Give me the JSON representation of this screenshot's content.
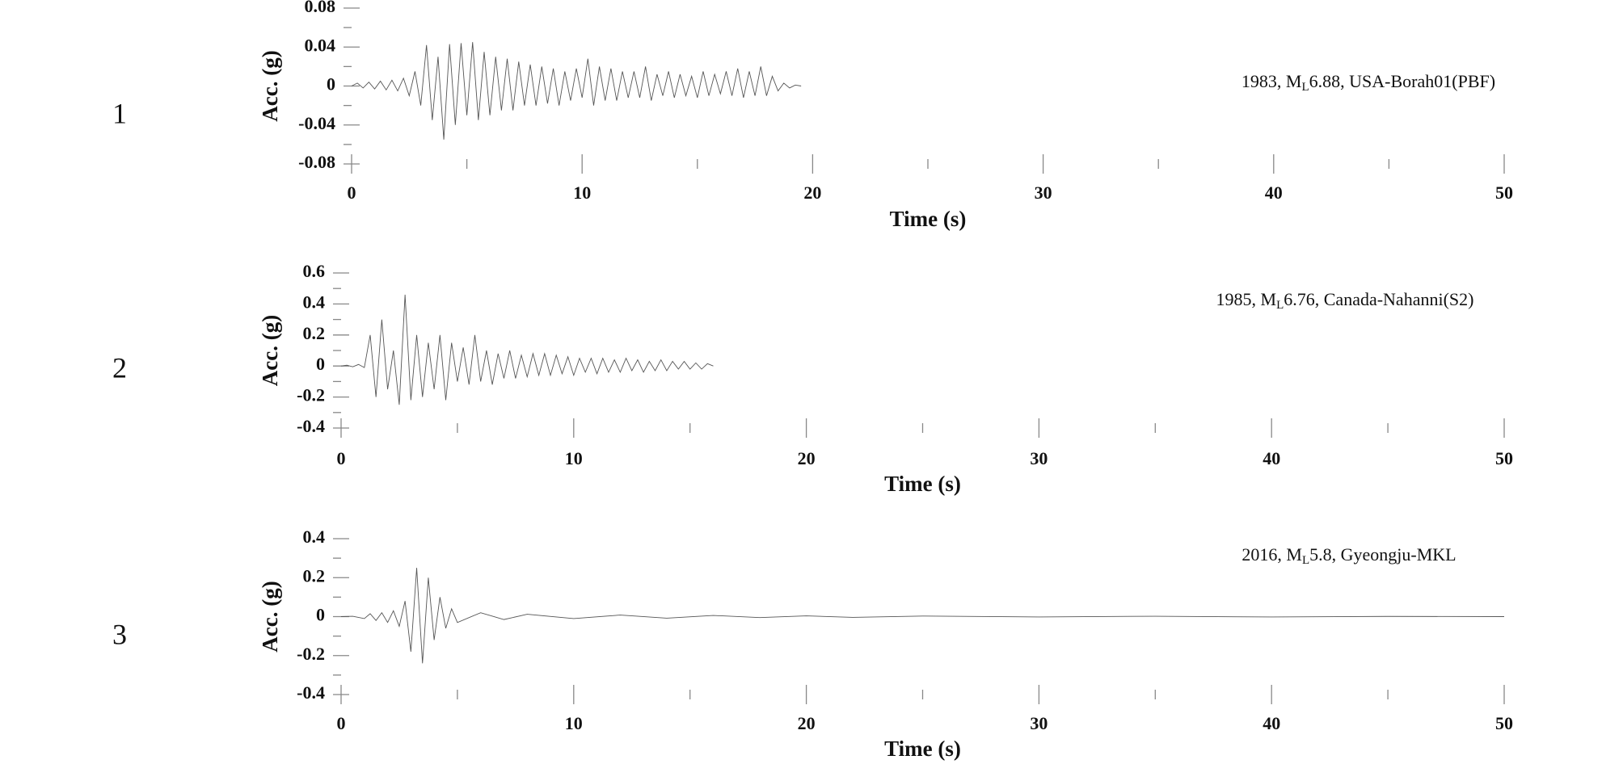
{
  "chart_data": [
    {
      "type": "line",
      "panel_label": "1",
      "annotation": {
        "prefix": "1983, M",
        "subscript": "L",
        "suffix": "6.88, USA-Borah01(PBF)"
      },
      "xlabel": "Time (s)",
      "ylabel": "Acc. (g)",
      "color": "#555555",
      "xlim": [
        0,
        50
      ],
      "xticks": [
        0,
        10,
        20,
        30,
        40,
        50
      ],
      "xminor": [
        5,
        15,
        25,
        35,
        45
      ],
      "ylim": [
        -0.08,
        0.08
      ],
      "yticks": [
        0.08,
        0.04,
        0,
        -0.04,
        -0.08
      ],
      "yminor": [
        0.06,
        0.02,
        -0.02,
        -0.06
      ],
      "x": [
        0,
        0.25,
        0.5,
        0.75,
        1,
        1.25,
        1.5,
        1.75,
        2,
        2.25,
        2.5,
        2.75,
        3,
        3.25,
        3.5,
        3.75,
        4,
        4.25,
        4.5,
        4.75,
        5,
        5.25,
        5.5,
        5.75,
        6,
        6.25,
        6.5,
        6.75,
        7,
        7.25,
        7.5,
        7.75,
        8,
        8.25,
        8.5,
        8.75,
        9,
        9.25,
        9.5,
        9.75,
        10,
        10.25,
        10.5,
        10.75,
        11,
        11.25,
        11.5,
        11.75,
        12,
        12.25,
        12.5,
        12.75,
        13,
        13.25,
        13.5,
        13.75,
        14,
        14.25,
        14.5,
        14.75,
        15,
        15.25,
        15.5,
        15.75,
        16,
        16.25,
        16.5,
        16.75,
        17,
        17.25,
        17.5,
        17.75,
        18,
        18.25,
        18.5,
        18.75,
        19,
        19.25,
        19.5
      ],
      "values": [
        0,
        0.003,
        -0.002,
        0.004,
        -0.003,
        0.005,
        -0.004,
        0.006,
        -0.005,
        0.008,
        -0.01,
        0.015,
        -0.02,
        0.042,
        -0.035,
        0.03,
        -0.055,
        0.043,
        -0.04,
        0.044,
        -0.03,
        0.045,
        -0.035,
        0.035,
        -0.03,
        0.03,
        -0.025,
        0.028,
        -0.025,
        0.025,
        -0.02,
        0.022,
        -0.02,
        0.02,
        -0.018,
        0.018,
        -0.02,
        0.015,
        -0.015,
        0.018,
        -0.012,
        0.028,
        -0.02,
        0.02,
        -0.015,
        0.018,
        -0.015,
        0.015,
        -0.012,
        0.015,
        -0.012,
        0.02,
        -0.015,
        0.012,
        -0.01,
        0.015,
        -0.012,
        0.012,
        -0.01,
        0.01,
        -0.012,
        0.015,
        -0.01,
        0.012,
        -0.008,
        0.015,
        -0.01,
        0.018,
        -0.012,
        0.015,
        -0.01,
        0.02,
        -0.01,
        0.01,
        -0.005,
        0.003,
        -0.002,
        0.001,
        0
      ]
    },
    {
      "type": "line",
      "panel_label": "2",
      "annotation": {
        "prefix": "1985, M",
        "subscript": "L",
        "suffix": "6.76, Canada-Nahanni(S2)"
      },
      "xlabel": "Time (s)",
      "ylabel": "Acc. (g)",
      "color": "#555555",
      "xlim": [
        0,
        50
      ],
      "xticks": [
        0,
        10,
        20,
        30,
        40,
        50
      ],
      "xminor": [
        5,
        15,
        25,
        35,
        45
      ],
      "ylim": [
        -0.4,
        0.6
      ],
      "yticks": [
        0.6,
        0.4,
        0.2,
        0,
        -0.2,
        -0.4
      ],
      "yminor": [
        0.5,
        0.3,
        0.1,
        -0.1,
        -0.3
      ],
      "x": [
        0,
        0.25,
        0.5,
        0.75,
        1,
        1.25,
        1.5,
        1.75,
        2,
        2.25,
        2.5,
        2.75,
        3,
        3.25,
        3.5,
        3.75,
        4,
        4.25,
        4.5,
        4.75,
        5,
        5.25,
        5.5,
        5.75,
        6,
        6.25,
        6.5,
        6.75,
        7,
        7.25,
        7.5,
        7.75,
        8,
        8.25,
        8.5,
        8.75,
        9,
        9.25,
        9.5,
        9.75,
        10,
        10.25,
        10.5,
        10.75,
        11,
        11.25,
        11.5,
        11.75,
        12,
        12.25,
        12.5,
        12.75,
        13,
        13.25,
        13.5,
        13.75,
        14,
        14.25,
        14.5,
        14.75,
        15,
        15.25,
        15.5,
        15.75,
        16
      ],
      "values": [
        0,
        0.005,
        -0.005,
        0.01,
        -0.01,
        0.2,
        -0.2,
        0.3,
        -0.15,
        0.1,
        -0.25,
        0.46,
        -0.22,
        0.2,
        -0.2,
        0.15,
        -0.15,
        0.2,
        -0.22,
        0.15,
        -0.1,
        0.12,
        -0.12,
        0.2,
        -0.1,
        0.1,
        -0.12,
        0.08,
        -0.08,
        0.1,
        -0.08,
        0.07,
        -0.07,
        0.08,
        -0.06,
        0.08,
        -0.06,
        0.07,
        -0.05,
        0.06,
        -0.06,
        0.05,
        -0.04,
        0.05,
        -0.05,
        0.05,
        -0.04,
        0.04,
        -0.04,
        0.05,
        -0.03,
        0.04,
        -0.04,
        0.03,
        -0.03,
        0.04,
        -0.03,
        0.03,
        -0.02,
        0.03,
        -0.02,
        0.02,
        -0.02,
        0.015,
        0
      ]
    },
    {
      "type": "line",
      "panel_label": "3",
      "annotation": {
        "prefix": "2016, M",
        "subscript": "L",
        "suffix": "5.8, Gyeongju-MKL"
      },
      "xlabel": "Time (s)",
      "ylabel": "Acc. (g)",
      "color": "#555555",
      "xlim": [
        0,
        50
      ],
      "xticks": [
        0,
        10,
        20,
        30,
        40,
        50
      ],
      "xminor": [
        5,
        15,
        25,
        35,
        45
      ],
      "ylim": [
        -0.4,
        0.4
      ],
      "yticks": [
        0.4,
        0.2,
        0,
        -0.2,
        -0.4
      ],
      "yminor": [
        0.3,
        0.1,
        -0.1,
        -0.3
      ],
      "x": [
        0,
        0.5,
        1,
        1.25,
        1.5,
        1.75,
        2,
        2.25,
        2.5,
        2.75,
        3,
        3.25,
        3.5,
        3.75,
        4,
        4.25,
        4.5,
        4.75,
        5,
        6,
        7,
        8,
        10,
        12,
        14,
        16,
        18,
        20,
        22,
        25,
        30,
        35,
        40,
        45,
        50
      ],
      "values": [
        0,
        0.002,
        -0.01,
        0.015,
        -0.02,
        0.02,
        -0.03,
        0.03,
        -0.05,
        0.08,
        -0.18,
        0.25,
        -0.24,
        0.2,
        -0.12,
        0.1,
        -0.06,
        0.04,
        -0.03,
        0.02,
        -0.015,
        0.012,
        -0.01,
        0.008,
        -0.008,
        0.006,
        -0.005,
        0.004,
        -0.004,
        0.003,
        -0.002,
        0.002,
        -0.002,
        0.001,
        0
      ]
    }
  ]
}
